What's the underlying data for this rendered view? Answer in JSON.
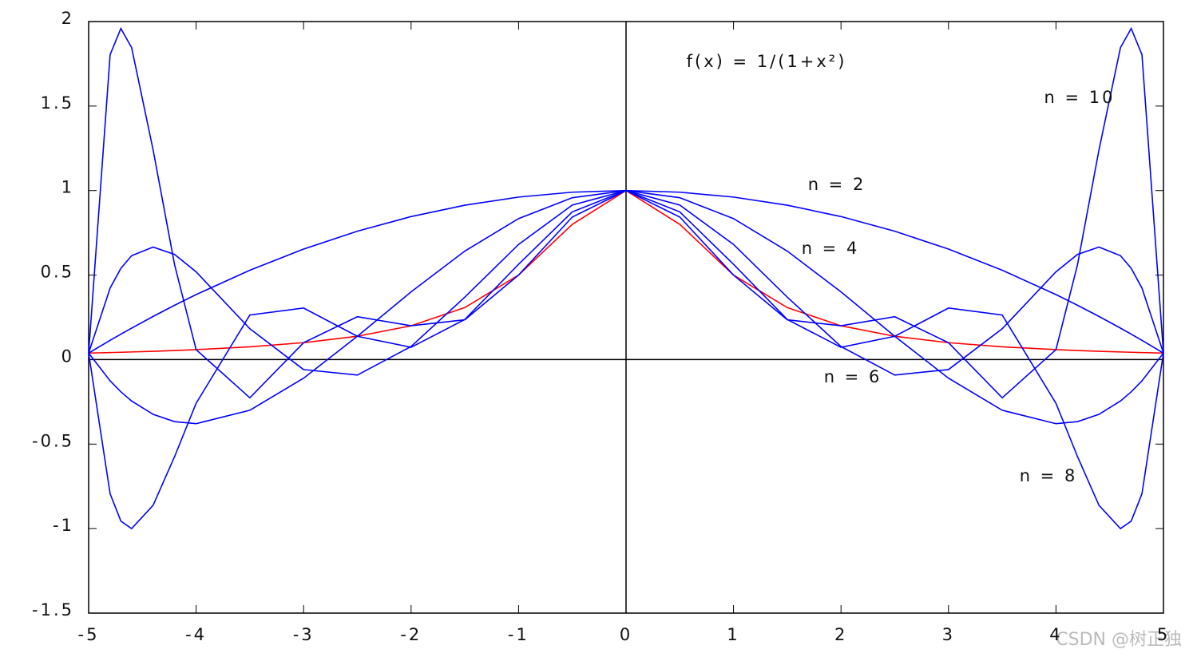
{
  "chart_data": {
    "type": "line",
    "x": [
      -5,
      -4.8,
      -4.7,
      -4.6,
      -4.4,
      -4.2,
      -4,
      -3.5,
      -3,
      -2.5,
      -2,
      -1.5,
      -1,
      -0.5,
      0,
      0.5,
      1,
      1.5,
      2,
      2.5,
      3,
      3.5,
      4,
      4.2,
      4.4,
      4.6,
      4.7,
      4.8,
      5
    ],
    "series": [
      {
        "name": "f(x) = 1/(1+x²)",
        "color": "#ff0000",
        "values": [
          0.0385,
          0.0416,
          0.0433,
          0.0451,
          0.0491,
          0.0536,
          0.0588,
          0.0755,
          0.1,
          0.1379,
          0.2,
          0.3077,
          0.5,
          0.8,
          1,
          0.8,
          0.5,
          0.3077,
          0.2,
          0.1379,
          0.1,
          0.0755,
          0.0588,
          0.0536,
          0.0491,
          0.0451,
          0.0433,
          0.0416,
          0.0385
        ]
      },
      {
        "name": "n = 2",
        "color": "#0000ff",
        "values": [
          0.0385,
          0.1139,
          0.1504,
          0.1862,
          0.2554,
          0.3215,
          0.3846,
          0.5288,
          0.6538,
          0.7596,
          0.8462,
          0.9135,
          0.9615,
          0.9904,
          1,
          0.9904,
          0.9615,
          0.9135,
          0.8462,
          0.7596,
          0.6538,
          0.5288,
          0.3846,
          0.3215,
          0.2554,
          0.1862,
          0.1504,
          0.1139,
          0.0385
        ]
      },
      {
        "name": "n = 4",
        "color": "#0000ff",
        "values": [
          0.0385,
          -0.1258,
          -0.1907,
          -0.245,
          -0.324,
          -0.3672,
          -0.3793,
          -0.2998,
          -0.1101,
          0.1379,
          0.4005,
          0.6419,
          0.8342,
          0.9576,
          1,
          0.9576,
          0.8342,
          0.6419,
          0.4005,
          0.1379,
          -0.1101,
          -0.2998,
          -0.3793,
          -0.3672,
          -0.324,
          -0.245,
          -0.1907,
          -0.1258,
          0.0385
        ]
      },
      {
        "name": "n = 6",
        "color": "#0000ff",
        "values": [
          0.0385,
          0.4232,
          0.5401,
          0.6147,
          0.6658,
          0.622,
          0.5192,
          0.1824,
          -0.059,
          -0.0914,
          0.0773,
          0.3696,
          0.6813,
          0.9142,
          1,
          0.9142,
          0.6813,
          0.3696,
          0.0773,
          -0.0914,
          -0.059,
          0.1824,
          0.5192,
          0.622,
          0.6658,
          0.6147,
          0.5401,
          0.4232,
          0.0385
        ]
      },
      {
        "name": "n = 8",
        "color": "#0000ff",
        "values": [
          0.0385,
          -0.7943,
          -0.9555,
          -1.0001,
          -0.862,
          -0.5736,
          -0.2587,
          0.2638,
          0.3049,
          0.1379,
          0.0726,
          0.2374,
          0.5636,
          0.874,
          1,
          0.874,
          0.5636,
          0.2374,
          0.0726,
          0.1379,
          0.3049,
          0.2638,
          -0.2587,
          -0.5736,
          -0.862,
          -1.0001,
          -0.9555,
          -0.7943,
          0.0385
        ]
      },
      {
        "name": "n = 10",
        "color": "#0000ff",
        "values": [
          0.0385,
          1.8044,
          1.959,
          1.8458,
          1.2402,
          0.5604,
          0.0588,
          -0.2262,
          0.1,
          0.2537,
          0.2,
          0.2354,
          0.5,
          0.8434,
          1,
          0.8434,
          0.5,
          0.2354,
          0.2,
          0.2537,
          0.1,
          -0.2262,
          0.0588,
          0.5604,
          1.2402,
          1.8458,
          1.959,
          1.8044,
          0.0385
        ]
      }
    ],
    "xlim": [
      -5,
      5
    ],
    "ylim": [
      -1.5,
      2
    ],
    "xticks": [
      -5,
      -4,
      -3,
      -2,
      -1,
      0,
      1,
      2,
      3,
      4,
      5
    ],
    "yticks": [
      -1.5,
      -1,
      -0.5,
      0,
      0.5,
      1,
      1.5,
      2
    ],
    "watermark": "CSDN @树正独"
  }
}
